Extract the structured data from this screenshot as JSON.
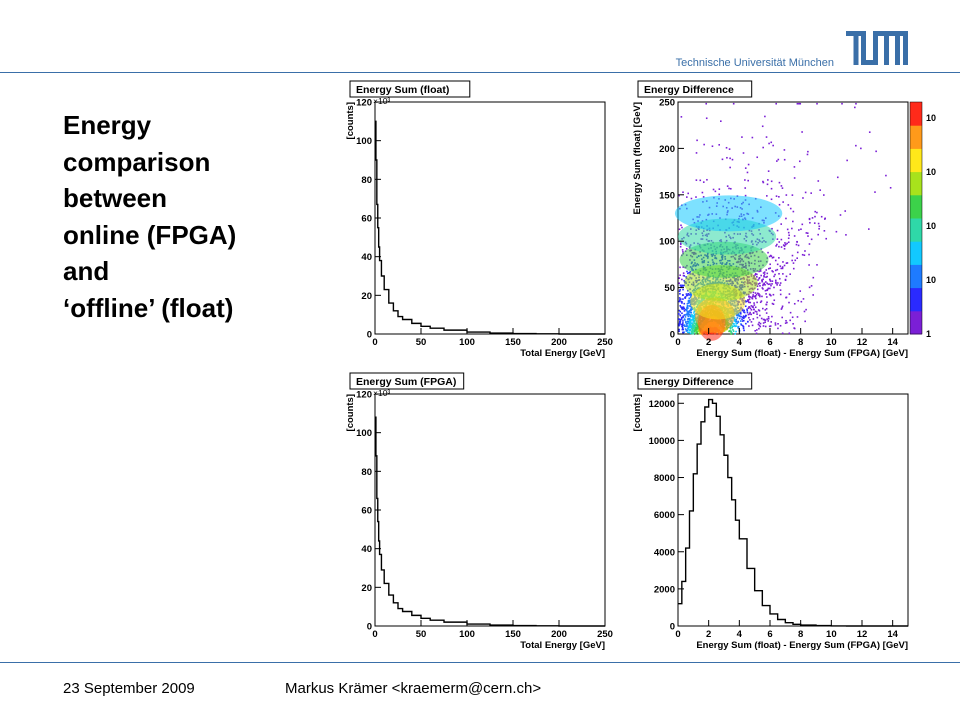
{
  "header": {
    "university": "Technische Universität München",
    "logo_text": "TUM",
    "accent_color": "#3a6fa8"
  },
  "slide": {
    "title_lines": [
      "Energy",
      "comparison",
      "between",
      "online (FPGA)",
      "and",
      "‘offline’ (float)"
    ]
  },
  "footer": {
    "date": "23 September 2009",
    "author": "Markus Krämer <kraemerm@cern.ch>"
  },
  "chart_data": [
    {
      "type": "area",
      "title": "Energy Sum (float)",
      "xlabel": "Total Energy [GeV]",
      "ylabel": "[counts]",
      "exponent_label": "×10³",
      "xlim": [
        0,
        250
      ],
      "ylim": [
        0,
        120
      ],
      "xticks": [
        0,
        50,
        100,
        150,
        200,
        250
      ],
      "yticks": [
        0,
        20,
        40,
        60,
        80,
        100,
        120
      ],
      "x": [
        0,
        1,
        2,
        3,
        4,
        5,
        7,
        10,
        15,
        20,
        25,
        30,
        40,
        50,
        60,
        75,
        100,
        125,
        150,
        175,
        200
      ],
      "y": [
        110,
        90,
        67,
        55,
        45,
        38,
        30,
        23,
        16,
        12,
        9,
        7.5,
        5.5,
        4,
        3,
        2,
        1,
        0.5,
        0.2,
        0.1,
        0
      ],
      "color": "#000000"
    },
    {
      "type": "heatmap",
      "title": "Energy Difference",
      "xlabel": "Energy Sum (float) - Energy Sum (FPGA) [GeV]",
      "ylabel": "Energy Sum (float) [GeV]",
      "xlim": [
        0,
        15
      ],
      "ylim": [
        0,
        250
      ],
      "xticks": [
        0,
        2,
        4,
        6,
        8,
        10,
        12,
        14
      ],
      "yticks": [
        0,
        50,
        100,
        150,
        200,
        250
      ],
      "colorbar_labels": [
        "1",
        "10",
        "10",
        "10",
        "10"
      ],
      "palette": [
        "#7b1fd6",
        "#2a2aff",
        "#1e7bff",
        "#12c9ff",
        "#2fd8a8",
        "#3cd24a",
        "#a8e21c",
        "#ffe81a",
        "#ff9a1a",
        "#ff2a1a"
      ]
    },
    {
      "type": "area",
      "title": "Energy Sum (FPGA)",
      "xlabel": "Total Energy [GeV]",
      "ylabel": "[counts]",
      "exponent_label": "×10³",
      "xlim": [
        0,
        250
      ],
      "ylim": [
        0,
        120
      ],
      "xticks": [
        0,
        50,
        100,
        150,
        200,
        250
      ],
      "yticks": [
        0,
        20,
        40,
        60,
        80,
        100,
        120
      ],
      "x": [
        0,
        1,
        2,
        3,
        4,
        5,
        7,
        10,
        15,
        20,
        25,
        30,
        40,
        50,
        60,
        75,
        100,
        125,
        150,
        175,
        200
      ],
      "y": [
        108,
        88,
        66,
        54,
        44,
        37,
        29,
        22,
        16,
        12,
        9,
        7.5,
        5.5,
        4,
        3,
        2,
        1,
        0.5,
        0.2,
        0.1,
        0
      ],
      "color": "#000000"
    },
    {
      "type": "line",
      "title": "Energy Difference",
      "xlabel": "Energy Sum (float) - Energy Sum (FPGA) [GeV]",
      "ylabel": "[counts]",
      "xlim": [
        0,
        15
      ],
      "ylim": [
        0,
        12500
      ],
      "xticks": [
        0,
        2,
        4,
        6,
        8,
        10,
        12,
        14
      ],
      "yticks": [
        0,
        2000,
        4000,
        6000,
        8000,
        10000,
        12000
      ],
      "x": [
        0,
        0.25,
        0.5,
        0.75,
        1,
        1.25,
        1.5,
        1.75,
        2,
        2.25,
        2.5,
        2.75,
        3,
        3.25,
        3.5,
        3.75,
        4,
        4.5,
        5,
        5.5,
        6,
        6.5,
        7,
        7.5,
        8,
        9,
        10,
        11
      ],
      "y": [
        1200,
        2400,
        4200,
        6200,
        8200,
        9800,
        11000,
        11800,
        12200,
        12000,
        11300,
        10300,
        9200,
        8000,
        6800,
        5700,
        4700,
        3100,
        1900,
        1100,
        650,
        350,
        180,
        90,
        50,
        20,
        5,
        0
      ],
      "color": "#000000"
    }
  ]
}
